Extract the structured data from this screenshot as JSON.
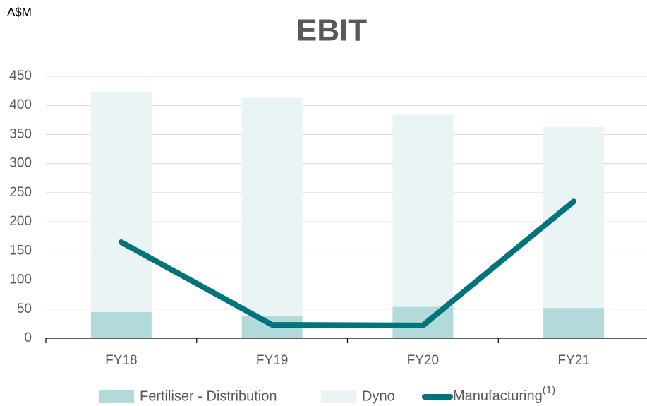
{
  "chart_data": {
    "type": "stacked_bar_line",
    "title": "EBIT",
    "y_label": "A$M",
    "categories": [
      "FY18",
      "FY19",
      "FY20",
      "FY21"
    ],
    "series": [
      {
        "name": "Fertiliser - Distribution",
        "kind": "bar",
        "color": "#b2dada",
        "values": [
          45,
          39,
          54,
          52
        ]
      },
      {
        "name": "Dyno",
        "kind": "bar",
        "color": "#eaf4f5",
        "values": [
          377,
          374,
          330,
          311
        ]
      },
      {
        "name": "Manufacturing",
        "legend_superscript": "(1)",
        "kind": "line",
        "color": "#00747a",
        "values": [
          165,
          23,
          22,
          235
        ]
      }
    ],
    "ylim": [
      0,
      450
    ],
    "yticks": [
      0,
      50,
      100,
      150,
      200,
      250,
      300,
      350,
      400,
      450
    ],
    "grid": true,
    "legend": "bottom"
  }
}
